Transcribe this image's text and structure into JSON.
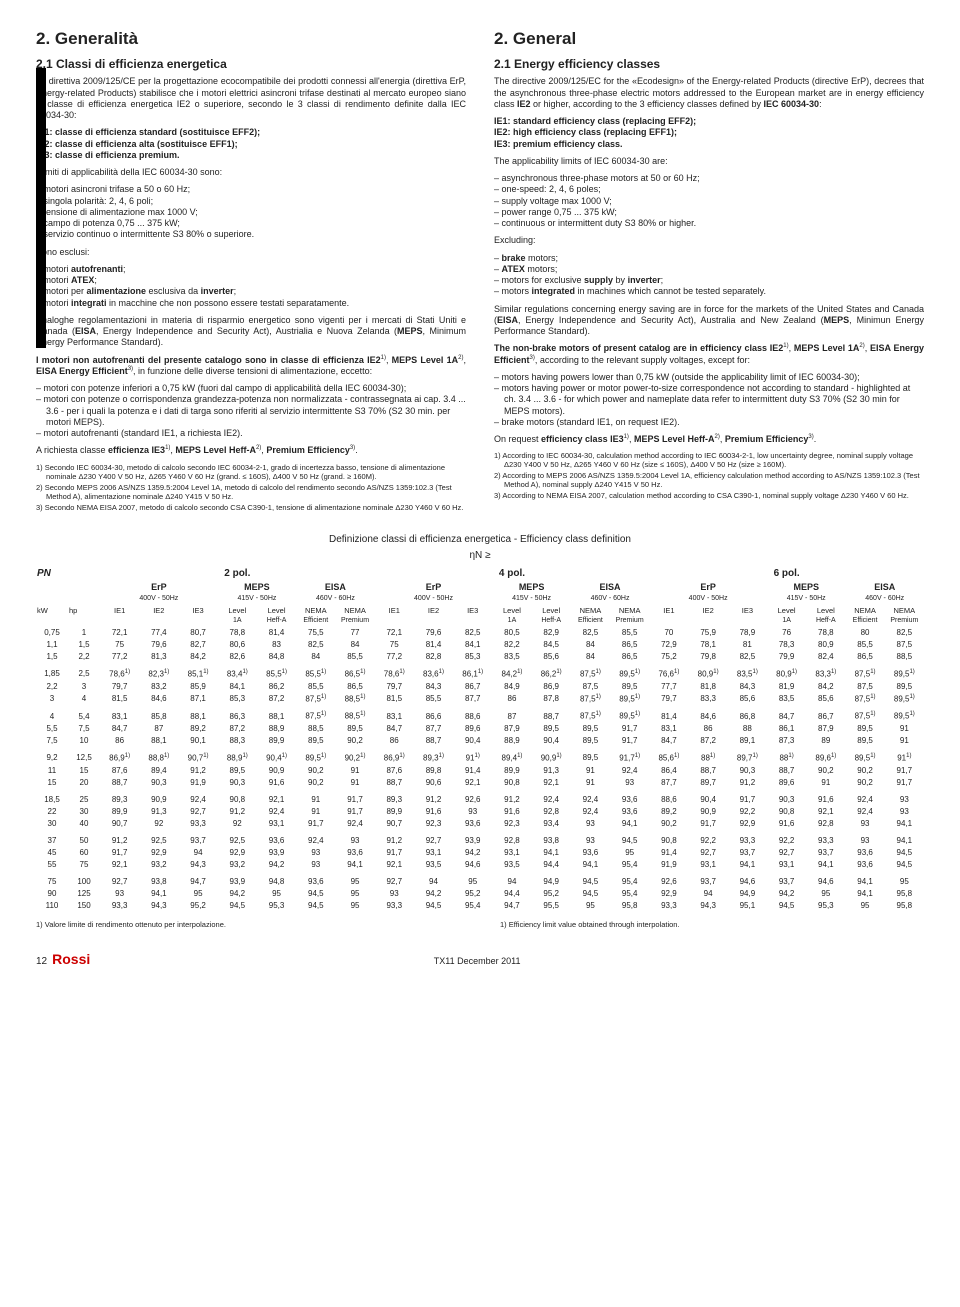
{
  "left": {
    "h2": "2. Generalità",
    "h3": "2.1 Classi di efficienza energetica",
    "p1": "La direttiva 2009/125/CE per la progettazione ecocompatibile dei prodotti connessi all'energia (direttiva ErP, Energy-related Products) stabilisce che i motori elettrici asincroni trifase destinati al mercato europeo siano in classe di efficienza energetica IE2 o superiore, secondo le 3 classi di rendimento definite dalla IEC 60034-30:",
    "cls1": "IE1: classe di efficienza standard (sostituisce EFF2);",
    "cls2": "IE2: classe di efficienza alta (sostituisce EFF1);",
    "cls3": "IE3: classe di efficienza premium.",
    "p2": "I limiti di applicabilità della IEC 60034-30 sono:",
    "lim1": "– motori asincroni trifase a 50 o 60 Hz;",
    "lim2": "– singola polarità: 2, 4, 6 poli;",
    "lim3": "– tensione di alimentazione max 1000 V;",
    "lim4": "– campo di potenza 0,75 ... 375 kW;",
    "lim5": "– servizio continuo o intermittente S3 80% o superiore.",
    "p3": "Sono esclusi:",
    "ex1": "– motori autofrenanti;",
    "ex2": "– motori ATEX;",
    "ex3": "– motori per alimentazione esclusiva da inverter;",
    "ex4": "– motori integrati in macchine che non possono essere testati separatamente.",
    "p4": "Analoghe regolamentazioni in materia di risparmio energetico sono vigenti per i mercati di Stati Uniti e Canada (EISA, Energy Independence and Security Act), Austrialia e Nuova Zelanda (MEPS, Minimum Energy Performance Standard).",
    "p5": "I motori non autofrenanti del presente catalogo sono in classe di efficienza IE2¹⁾, MEPS Level 1A²⁾, EISA Energy Efficient³⁾, in funzione delle diverse tensioni di alimentazione, eccetto:",
    "exc1": "– motori con potenze inferiori a 0,75 kW (fuori dal campo di applicabilità della IEC 60034-30);",
    "exc2": "– motori con potenze o corrispondenza grandezza-potenza non normalizzata - contrassegnata ai cap. 3.4 ... 3.6 - per i quali la potenza e i dati di targa sono riferiti al servizio intermittente S3 70% (S2 30 min. per motori MEPS).",
    "exc3": "– motori autofrenanti (standard IE1, a richiesta IE2).",
    "p6": "A richiesta classe efficienza IE3¹⁾, MEPS Level Heff-A²⁾, Premium Efficiency³⁾.",
    "fn1": "1) Secondo IEC 60034-30, metodo di calcolo secondo IEC 60034-2-1, grado di incertezza basso, tensione di alimentazione nominale Δ230 Y400 V 50 Hz, Δ265 Y460 V 60 Hz (grand. ≤ 160S), Δ400 V 50 Hz (grand. ≥ 160M).",
    "fn2": "2) Secondo MEPS 2006 AS/NZS 1359.5:2004 Level 1A, metodo di calcolo del rendimento secondo AS/NZS 1359:102.3 (Test Method A), alimentazione nominale Δ240 Y415 V 50 Hz.",
    "fn3": "3) Secondo NEMA EISA 2007, metodo di calcolo secondo CSA C390-1, tensione di alimentazione nominale Δ230 Y460 V 60 Hz."
  },
  "right": {
    "h2": "2. General",
    "h3": "2.1 Energy efficiency classes",
    "p1": "The directive 2009/125/EC for the «Ecodesign» of the Energy-related Products (directive ErP), decrees that the asynchronous three-phase electric motors addressed to the European market are in energy efficiency class IE2 or higher, according to the 3 efficiency classes defined by IEC 60034-30:",
    "cls1": "IE1: standard efficiency class (replacing EFF2);",
    "cls2": "IE2: high efficiency class (replacing EFF1);",
    "cls3": "IE3: premium efficiency class.",
    "p2": "The applicability limits of IEC 60034-30 are:",
    "lim1": "– asynchronous three-phase motors at 50 or 60 Hz;",
    "lim2": "– one-speed: 2, 4, 6 poles;",
    "lim3": "– supply voltage max 1000 V;",
    "lim4": "– power range 0,75 ... 375 kW;",
    "lim5": "– continuous or intermittent duty S3 80% or higher.",
    "p3": "Excluding:",
    "ex1": "– brake motors;",
    "ex2": "– ATEX motors;",
    "ex3": "– motors for exclusive supply by inverter;",
    "ex4": "– motors integrated in machines which cannot be tested separately.",
    "p4": "Similar regulations concerning energy saving are in force for the markets of the United States and Canada (EISA, Energy Independence and Security Act), Australia and New Zealand (MEPS, Minimun Energy Performance Standard).",
    "p5": "The non-brake motors of present catalog are in efficiency class IE2¹⁾, MEPS Level 1A²⁾, EISA Energy Efficient³⁾, according to the relevant supply voltages, except for:",
    "exc1": "– motors having powers lower than 0,75 kW (outside the applicability limit of IEC 60034-30);",
    "exc2": "– motors having power or motor power-to-size correspondence not according to standard - highlighted at ch. 3.4 ... 3.6 - for which power and nameplate data refer to intermittent duty S3 70% (S2 30 min for MEPS motors).",
    "exc3": "– brake motors (standard IE1, on request IE2).",
    "p6": "On request efficiency class IE3¹⁾, MEPS Level Heff-A²⁾, Premium Efficiency³⁾.",
    "fn1": "1) According to IEC 60034-30, calculation method according to IEC 60034-2-1, low uncertainty degree, nominal supply voltage Δ230 Y400 V 50 Hz, Δ265 Y460 V 60 Hz (size ≤ 160S), Δ400 V 50 Hz (size ≥ 160M).",
    "fn2": "2) According to MEPS 2006 AS/NZS 1359.5:2004 Level 1A, efficiency calculation method according to AS/NZS 1359:102.3 (Test Method A), nominal supply Δ240 Y415 V 50 Hz.",
    "fn3": "3) According to NEMA EISA 2007, calculation method according to CSA C390-1, nominal supply voltage Δ230 Y460 V 60 Hz."
  },
  "table": {
    "title": "Definizione classi di efficienza energetica - Efficiency class definition",
    "eta": "ηN ≥",
    "PN": "PN",
    "p2": "2 pol.",
    "p4": "4 pol.",
    "p6": "6 pol.",
    "ErP": "ErP",
    "MEPS": "MEPS",
    "EISA": "EISA",
    "v400": "400V - 50Hz",
    "v415": "415V - 50Hz",
    "v460": "460V - 60Hz",
    "kW": "kW",
    "hp": "hp",
    "IE1": "IE1",
    "IE2": "IE2",
    "IE3": "IE3",
    "Level": "Level",
    "NEMA": "NEMA",
    "A1": "1A",
    "HeffA": "Heff-A",
    "Eff": "Efficient",
    "Prem": "Premium",
    "rows": [
      [
        "0,75",
        "1",
        "72,1",
        "77,4",
        "80,7",
        "78,8",
        "81,4",
        "75,5",
        "77",
        "72,1",
        "79,6",
        "82,5",
        "80,5",
        "82,9",
        "82,5",
        "85,5",
        "70",
        "75,9",
        "78,9",
        "76",
        "78,8",
        "80",
        "82,5"
      ],
      [
        "1,1",
        "1,5",
        "75",
        "79,6",
        "82,7",
        "80,6",
        "83",
        "82,5",
        "84",
        "75",
        "81,4",
        "84,1",
        "82,2",
        "84,5",
        "84",
        "86,5",
        "72,9",
        "78,1",
        "81",
        "78,3",
        "80,9",
        "85,5",
        "87,5"
      ],
      [
        "1,5",
        "2,2",
        "77,2",
        "81,3",
        "84,2",
        "82,6",
        "84,8",
        "84",
        "85,5",
        "77,2",
        "82,8",
        "85,3",
        "83,5",
        "85,6",
        "84",
        "86,5",
        "75,2",
        "79,8",
        "82,5",
        "79,9",
        "82,4",
        "86,5",
        "88,5"
      ],
      [
        "1,85",
        "2,5",
        "78,6¹⁾",
        "82,3¹⁾",
        "85,1¹⁾",
        "83,4¹⁾",
        "85,5¹⁾",
        "85,5¹⁾",
        "86,5¹⁾",
        "78,6¹⁾",
        "83,6¹⁾",
        "86,1¹⁾",
        "84,2¹⁾",
        "86,2¹⁾",
        "87,5¹⁾",
        "89,5¹⁾",
        "76,6¹⁾",
        "80,9¹⁾",
        "83,5¹⁾",
        "80,9¹⁾",
        "83,3¹⁾",
        "87,5¹⁾",
        "89,5¹⁾"
      ],
      [
        "2,2",
        "3",
        "79,7",
        "83,2",
        "85,9",
        "84,1",
        "86,2",
        "85,5",
        "86,5",
        "79,7",
        "84,3",
        "86,7",
        "84,9",
        "86,9",
        "87,5",
        "89,5",
        "77,7",
        "81,8",
        "84,3",
        "81,9",
        "84,2",
        "87,5",
        "89,5"
      ],
      [
        "3",
        "4",
        "81,5",
        "84,6",
        "87,1",
        "85,3",
        "87,2",
        "87,5¹⁾",
        "88,5¹⁾",
        "81,5",
        "85,5",
        "87,7",
        "86",
        "87,8",
        "87,5¹⁾",
        "89,5¹⁾",
        "79,7",
        "83,3",
        "85,6",
        "83,5",
        "85,6",
        "87,5¹⁾",
        "89,5¹⁾"
      ],
      [
        "4",
        "5,4",
        "83,1",
        "85,8",
        "88,1",
        "86,3",
        "88,1",
        "87,5¹⁾",
        "88,5¹⁾",
        "83,1",
        "86,6",
        "88,6",
        "87",
        "88,7",
        "87,5¹⁾",
        "89,5¹⁾",
        "81,4",
        "84,6",
        "86,8",
        "84,7",
        "86,7",
        "87,5¹⁾",
        "89,5¹⁾"
      ],
      [
        "5,5",
        "7,5",
        "84,7",
        "87",
        "89,2",
        "87,2",
        "88,9",
        "88,5",
        "89,5",
        "84,7",
        "87,7",
        "89,6",
        "87,9",
        "89,5",
        "89,5",
        "91,7",
        "83,1",
        "86",
        "88",
        "86,1",
        "87,9",
        "89,5",
        "91"
      ],
      [
        "7,5",
        "10",
        "86",
        "88,1",
        "90,1",
        "88,3",
        "89,9",
        "89,5",
        "90,2",
        "86",
        "88,7",
        "90,4",
        "88,9",
        "90,4",
        "89,5",
        "91,7",
        "84,7",
        "87,2",
        "89,1",
        "87,3",
        "89",
        "89,5",
        "91"
      ],
      [
        "9,2",
        "12,5",
        "86,9¹⁾",
        "88,8¹⁾",
        "90,7¹⁾",
        "88,9¹⁾",
        "90,4¹⁾",
        "89,5¹⁾",
        "90,2¹⁾",
        "86,9¹⁾",
        "89,3¹⁾",
        "91¹⁾",
        "89,4¹⁾",
        "90,9¹⁾",
        "89,5",
        "91,7¹⁾",
        "85,6¹⁾",
        "88¹⁾",
        "89,7¹⁾",
        "88¹⁾",
        "89,6¹⁾",
        "89,5¹⁾",
        "91¹⁾"
      ],
      [
        "11",
        "15",
        "87,6",
        "89,4",
        "91,2",
        "89,5",
        "90,9",
        "90,2",
        "91",
        "87,6",
        "89,8",
        "91,4",
        "89,9",
        "91,3",
        "91",
        "92,4",
        "86,4",
        "88,7",
        "90,3",
        "88,7",
        "90,2",
        "90,2",
        "91,7"
      ],
      [
        "15",
        "20",
        "88,7",
        "90,3",
        "91,9",
        "90,3",
        "91,6",
        "90,2",
        "91",
        "88,7",
        "90,6",
        "92,1",
        "90,8",
        "92,1",
        "91",
        "93",
        "87,7",
        "89,7",
        "91,2",
        "89,6",
        "91",
        "90,2",
        "91,7"
      ],
      [
        "18,5",
        "25",
        "89,3",
        "90,9",
        "92,4",
        "90,8",
        "92,1",
        "91",
        "91,7",
        "89,3",
        "91,2",
        "92,6",
        "91,2",
        "92,4",
        "92,4",
        "93,6",
        "88,6",
        "90,4",
        "91,7",
        "90,3",
        "91,6",
        "92,4",
        "93"
      ],
      [
        "22",
        "30",
        "89,9",
        "91,3",
        "92,7",
        "91,2",
        "92,4",
        "91",
        "91,7",
        "89,9",
        "91,6",
        "93",
        "91,6",
        "92,8",
        "92,4",
        "93,6",
        "89,2",
        "90,9",
        "92,2",
        "90,8",
        "92,1",
        "92,4",
        "93"
      ],
      [
        "30",
        "40",
        "90,7",
        "92",
        "93,3",
        "92",
        "93,1",
        "91,7",
        "92,4",
        "90,7",
        "92,3",
        "93,6",
        "92,3",
        "93,4",
        "93",
        "94,1",
        "90,2",
        "91,7",
        "92,9",
        "91,6",
        "92,8",
        "93",
        "94,1"
      ],
      [
        "37",
        "50",
        "91,2",
        "92,5",
        "93,7",
        "92,5",
        "93,6",
        "92,4",
        "93",
        "91,2",
        "92,7",
        "93,9",
        "92,8",
        "93,8",
        "93",
        "94,5",
        "90,8",
        "92,2",
        "93,3",
        "92,2",
        "93,3",
        "93",
        "94,1"
      ],
      [
        "45",
        "60",
        "91,7",
        "92,9",
        "94",
        "92,9",
        "93,9",
        "93",
        "93,6",
        "91,7",
        "93,1",
        "94,2",
        "93,1",
        "94,1",
        "93,6",
        "95",
        "91,4",
        "92,7",
        "93,7",
        "92,7",
        "93,7",
        "93,6",
        "94,5"
      ],
      [
        "55",
        "75",
        "92,1",
        "93,2",
        "94,3",
        "93,2",
        "94,2",
        "93",
        "94,1",
        "92,1",
        "93,5",
        "94,6",
        "93,5",
        "94,4",
        "94,1",
        "95,4",
        "91,9",
        "93,1",
        "94,1",
        "93,1",
        "94,1",
        "93,6",
        "94,5"
      ],
      [
        "75",
        "100",
        "92,7",
        "93,8",
        "94,7",
        "93,9",
        "94,8",
        "93,6",
        "95",
        "92,7",
        "94",
        "95",
        "94",
        "94,9",
        "94,5",
        "95,4",
        "92,6",
        "93,7",
        "94,6",
        "93,7",
        "94,6",
        "94,1",
        "95"
      ],
      [
        "90",
        "125",
        "93",
        "94,1",
        "95",
        "94,2",
        "95",
        "94,5",
        "95",
        "93",
        "94,2",
        "95,2",
        "94,4",
        "95,2",
        "94,5",
        "95,4",
        "92,9",
        "94",
        "94,9",
        "94,2",
        "95",
        "94,1",
        "95,8"
      ],
      [
        "110",
        "150",
        "93,3",
        "94,3",
        "95,2",
        "94,5",
        "95,3",
        "94,5",
        "95",
        "93,3",
        "94,5",
        "95,4",
        "94,7",
        "95,5",
        "95",
        "95,8",
        "93,3",
        "94,3",
        "95,1",
        "94,5",
        "95,3",
        "95",
        "95,8"
      ]
    ],
    "groupBreaks": [
      3,
      6,
      9,
      12,
      15,
      18
    ],
    "afterL": "1) Valore limite di rendimento ottenuto per interpolazione.",
    "afterR": "1) Efficiency limit value obtained through interpolation."
  },
  "footer": {
    "page": "12",
    "brand": "Rossi",
    "doc": "TX11 December 2011"
  }
}
